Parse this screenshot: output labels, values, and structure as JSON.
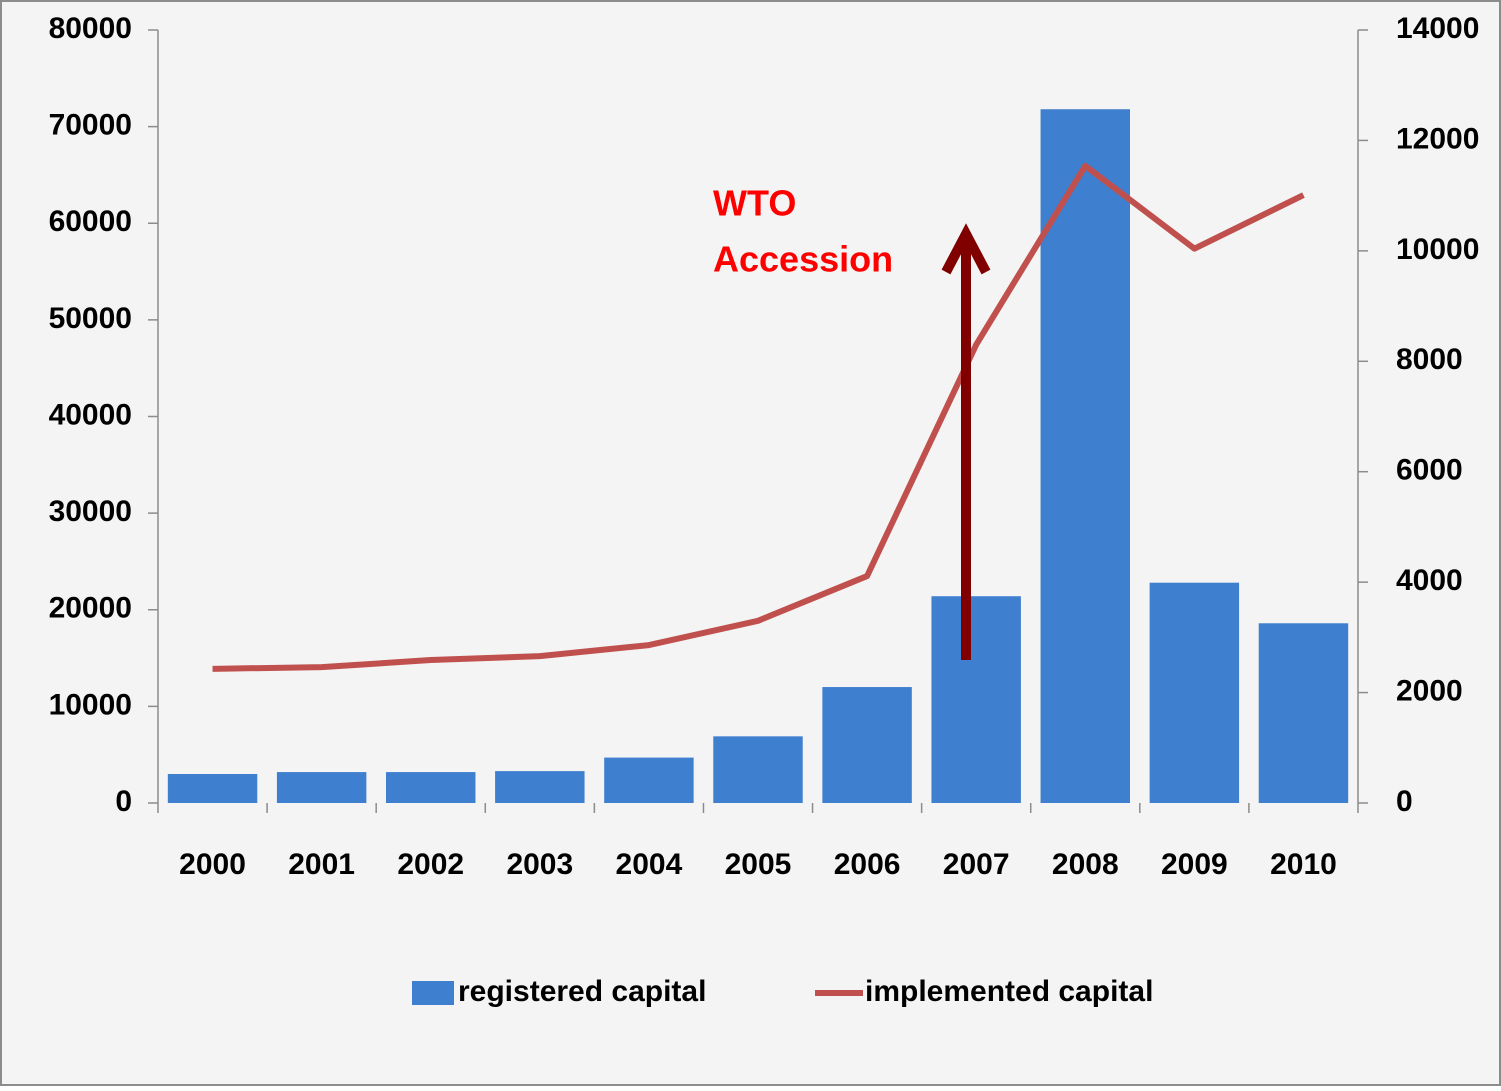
{
  "chart_data": {
    "type": "bar_line",
    "categories": [
      "2000",
      "2001",
      "2002",
      "2003",
      "2004",
      "2005",
      "2006",
      "2007",
      "2008",
      "2009",
      "2010"
    ],
    "series": [
      {
        "name": "registered capital",
        "type": "bar",
        "color": "#3f7fcf",
        "axis": "y",
        "values": [
          3000,
          3200,
          3200,
          3300,
          4700,
          6900,
          12000,
          21400,
          71800,
          22800,
          18600
        ]
      },
      {
        "name": "implemented capital",
        "type": "line",
        "color": "#c0504d",
        "axis": "y2",
        "values": [
          2430,
          2460,
          2590,
          2660,
          2860,
          3300,
          4110,
          8300,
          11540,
          10040,
          11010
        ]
      }
    ],
    "ylim": [
      0,
      80000
    ],
    "yticks": [
      0,
      10000,
      20000,
      30000,
      40000,
      50000,
      60000,
      70000,
      80000
    ],
    "y2lim": [
      0,
      14000
    ],
    "y2ticks": [
      0,
      2000,
      4000,
      6000,
      8000,
      10000,
      12000,
      14000
    ],
    "annotation": [
      "WTO",
      "Accession"
    ],
    "legend": "bottom"
  }
}
